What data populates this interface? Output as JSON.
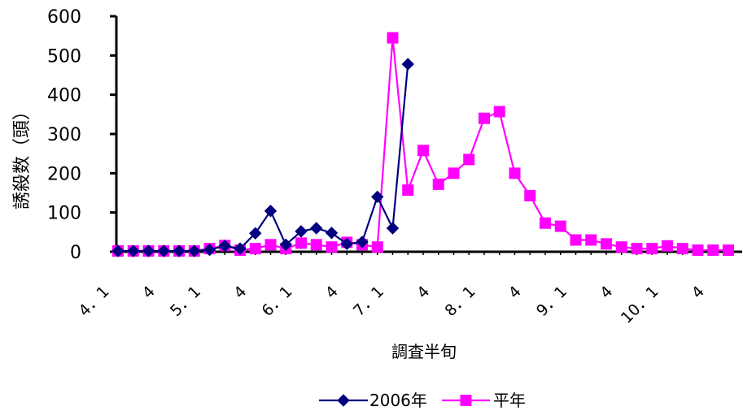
{
  "chart_data": {
    "type": "line",
    "title": "",
    "xlabel": "調査半旬",
    "ylabel": "誘殺数（頭）",
    "ylim": [
      0,
      600
    ],
    "yticks": [
      0,
      100,
      200,
      300,
      400,
      500,
      600
    ],
    "grid": false,
    "legend": "bottom",
    "x_tick_labels": [
      {
        "index": 0,
        "label": "4．1"
      },
      {
        "index": 6,
        "label": "5．1"
      },
      {
        "index": 12,
        "label": "6．1"
      },
      {
        "index": 18,
        "label": "7．1"
      },
      {
        "index": 24,
        "label": "8．1"
      },
      {
        "index": 30,
        "label": "9．1"
      },
      {
        "index": 36,
        "label": "10．1"
      },
      {
        "index": 3,
        "label": "4"
      },
      {
        "index": 9,
        "label": "4"
      },
      {
        "index": 15,
        "label": "4"
      },
      {
        "index": 21,
        "label": "4"
      },
      {
        "index": 27,
        "label": "4"
      },
      {
        "index": 33,
        "label": "4"
      },
      {
        "index": 39,
        "label": "4"
      }
    ],
    "series": [
      {
        "name": "2006年",
        "color": "#000080",
        "marker": "diamond",
        "x": [
          0,
          1,
          2,
          3,
          4,
          5,
          6,
          7,
          8,
          9,
          10,
          11,
          12,
          13,
          14,
          15,
          16,
          17,
          18,
          19,
          20
        ],
        "values": [
          2,
          2,
          2,
          2,
          2,
          2,
          5,
          15,
          8,
          47,
          104,
          18,
          52,
          60,
          48,
          20,
          25,
          140,
          60,
          478,
          null
        ]
      },
      {
        "name": "平年",
        "color": "#ff00ff",
        "marker": "square",
        "x": [
          0,
          1,
          2,
          3,
          4,
          5,
          6,
          7,
          8,
          9,
          10,
          11,
          12,
          13,
          14,
          15,
          16,
          17,
          18,
          19,
          20,
          21,
          22,
          23,
          24,
          25,
          26,
          27,
          28,
          29,
          30,
          31,
          32,
          33,
          34,
          35,
          36,
          37,
          38,
          39,
          40
        ],
        "values": [
          2,
          2,
          2,
          2,
          2,
          2,
          8,
          16,
          4,
          8,
          18,
          8,
          22,
          18,
          12,
          24,
          18,
          12,
          545,
          157,
          258,
          172,
          200,
          235,
          340,
          357,
          200,
          143,
          73,
          65,
          30,
          30,
          20,
          12,
          8,
          8,
          15,
          8,
          4,
          4,
          4
        ]
      }
    ]
  }
}
